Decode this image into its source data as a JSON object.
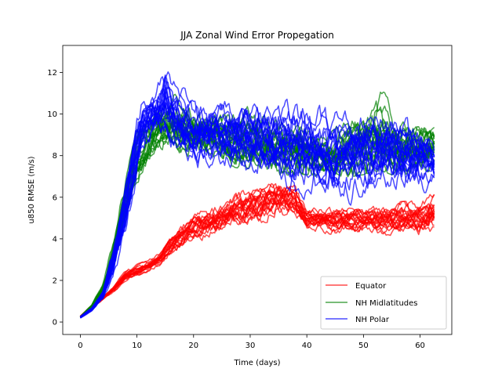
{
  "chart_data": {
    "type": "line",
    "title": "JJA Zonal Wind Error Propegation",
    "xlabel": "Time (days)",
    "ylabel": "u850 RMSE (m/s)",
    "xlim": [
      -3.1,
      65.6
    ],
    "ylim": [
      -0.6,
      13.3
    ],
    "xticks": [
      0,
      10,
      20,
      30,
      40,
      50,
      60
    ],
    "yticks": [
      0,
      2,
      4,
      6,
      8,
      10,
      12
    ],
    "grid": false,
    "legend_location": "lower right",
    "members_per_group": 20,
    "series": [
      {
        "name": "Equator",
        "color": "#ff0000",
        "opacity": 0.7,
        "envelope": {
          "x": [
            0,
            2,
            4,
            6,
            8,
            10,
            12,
            14,
            16,
            18,
            20,
            25,
            30,
            35,
            38,
            40,
            45,
            50,
            55,
            60,
            62.5
          ],
          "low": [
            0.2,
            0.5,
            0.9,
            1.3,
            1.8,
            2.0,
            2.2,
            2.5,
            2.8,
            3.0,
            3.5,
            3.8,
            4.0,
            4.4,
            4.6,
            4.0,
            3.8,
            3.8,
            3.6,
            3.5,
            3.7
          ],
          "high": [
            0.3,
            0.9,
            1.3,
            1.8,
            2.5,
            2.8,
            3.0,
            3.4,
            4.2,
            4.8,
            5.3,
            6.0,
            6.5,
            7.0,
            6.6,
            5.6,
            5.6,
            5.6,
            5.8,
            5.9,
            6.3
          ]
        }
      },
      {
        "name": "NH Midlatitudes",
        "color": "#008000",
        "opacity": 0.7,
        "envelope": {
          "x": [
            0,
            2,
            4,
            6,
            8,
            10,
            12,
            14,
            15,
            17,
            20,
            25,
            30,
            35,
            40,
            45,
            50,
            53,
            55,
            60,
            62.5
          ],
          "low": [
            0.2,
            0.6,
            1.2,
            2.5,
            4.5,
            6.5,
            7.5,
            8.0,
            8.2,
            8.0,
            7.8,
            7.5,
            7.2,
            7.0,
            7.0,
            6.8,
            7.0,
            7.2,
            7.0,
            7.0,
            7.2
          ],
          "high": [
            0.3,
            1.0,
            2.4,
            5.0,
            8.0,
            10.0,
            10.8,
            11.5,
            12.3,
            11.8,
            11.3,
            11.0,
            11.2,
            10.8,
            10.3,
            10.0,
            11.3,
            11.9,
            11.0,
            10.5,
            10.4
          ]
        }
      },
      {
        "name": "NH Polar",
        "color": "#0000ff",
        "opacity": 0.7,
        "envelope": {
          "x": [
            0,
            2,
            4,
            6,
            8,
            10,
            11,
            13,
            15,
            17,
            20,
            25,
            30,
            35,
            40,
            45,
            50,
            55,
            60,
            62.5
          ],
          "low": [
            0.15,
            0.4,
            0.8,
            1.6,
            3.5,
            6.0,
            7.2,
            7.8,
            8.0,
            7.5,
            6.8,
            6.6,
            6.4,
            6.0,
            5.4,
            5.4,
            5.6,
            5.6,
            5.8,
            5.9
          ],
          "high": [
            0.3,
            0.8,
            1.8,
            4.5,
            7.5,
            10.5,
            11.7,
            11.8,
            12.7,
            11.8,
            11.2,
            11.0,
            11.4,
            11.2,
            11.0,
            10.6,
            10.6,
            10.8,
            10.2,
            9.0
          ]
        }
      }
    ]
  }
}
